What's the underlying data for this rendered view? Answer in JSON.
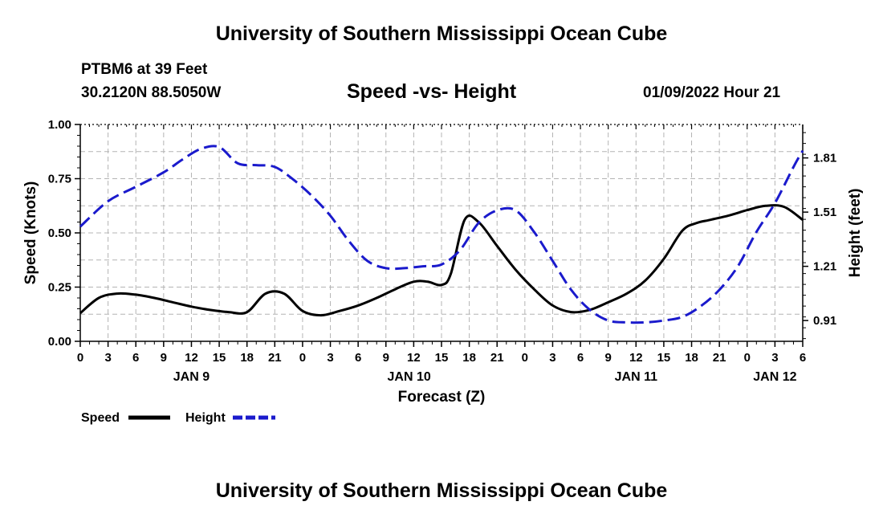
{
  "header": {
    "main_title": "University of Southern Mississippi Ocean Cube",
    "station": "PTBM6 at 39 Feet",
    "coords": "30.2120N  88.5050W",
    "run_date": "01/09/2022 Hour 21",
    "footer_title": "University of Southern Mississippi Ocean Cube"
  },
  "colors": {
    "speed": "#000000",
    "height": "#1a1acc",
    "grid": "#b4b4b4"
  },
  "chart_data": {
    "type": "line",
    "title": "Speed -vs- Height",
    "xlabel": "Forecast (Z)",
    "ylabel": "Speed (Knots)",
    "y2label": "Height (feet)",
    "xlim": [
      0,
      78
    ],
    "ylim": [
      0,
      1
    ],
    "y2lim": [
      0.795,
      1.995
    ],
    "x_ticks": [
      0,
      3,
      6,
      9,
      12,
      15,
      18,
      21,
      24,
      27,
      30,
      33,
      36,
      39,
      42,
      45,
      48,
      51,
      54,
      57,
      60,
      63,
      66,
      69,
      72,
      75,
      78
    ],
    "x_tick_labels": [
      "0",
      "3",
      "6",
      "9",
      "12",
      "15",
      "18",
      "21",
      "0",
      "3",
      "6",
      "9",
      "12",
      "15",
      "18",
      "21",
      "0",
      "3",
      "6",
      "9",
      "12",
      "15",
      "18",
      "21",
      "0",
      "3",
      "6"
    ],
    "day_labels": [
      {
        "x": 12,
        "label": "JAN 9"
      },
      {
        "x": 35.5,
        "label": "JAN 10"
      },
      {
        "x": 60,
        "label": "JAN 11"
      },
      {
        "x": 75,
        "label": "JAN 12"
      }
    ],
    "y_ticks": [
      0,
      0.25,
      0.5,
      0.75,
      1.0
    ],
    "y_tick_labels": [
      "0.00",
      "0.25",
      "0.50",
      "0.75",
      "1.00"
    ],
    "y2_ticks": [
      0.91,
      1.21,
      1.51,
      1.81
    ],
    "y2_tick_labels": [
      "0.91",
      "1.21",
      "1.51",
      "1.81"
    ],
    "grid": true,
    "legend": [
      {
        "name": "Speed",
        "style": "solid"
      },
      {
        "name": "Height",
        "style": "dashed"
      }
    ],
    "series": [
      {
        "name": "Speed",
        "axis": "left",
        "x": [
          0,
          2,
          4,
          6,
          8,
          10,
          12,
          14,
          16,
          18,
          20,
          22,
          24,
          26,
          28,
          30,
          32,
          34,
          36,
          37.5,
          39,
          40,
          41.5,
          43,
          45,
          47,
          49,
          51,
          53,
          55,
          57,
          59,
          61,
          63,
          65,
          66.5,
          68,
          70,
          72,
          74,
          76,
          78
        ],
        "y": [
          0.13,
          0.2,
          0.22,
          0.215,
          0.2,
          0.18,
          0.16,
          0.145,
          0.135,
          0.135,
          0.22,
          0.22,
          0.14,
          0.12,
          0.14,
          0.165,
          0.2,
          0.24,
          0.275,
          0.275,
          0.26,
          0.31,
          0.56,
          0.55,
          0.44,
          0.33,
          0.24,
          0.165,
          0.135,
          0.145,
          0.18,
          0.22,
          0.28,
          0.38,
          0.51,
          0.545,
          0.56,
          0.58,
          0.605,
          0.625,
          0.62,
          0.56
        ]
      },
      {
        "name": "Height",
        "axis": "right",
        "x": [
          0,
          3,
          6,
          9,
          11,
          13,
          15,
          17,
          19,
          21,
          23,
          25,
          27,
          29,
          31,
          33,
          35,
          37,
          39,
          41,
          43,
          45,
          47,
          49,
          51,
          53,
          55,
          57,
          59,
          61,
          63,
          65,
          67,
          69,
          71,
          73,
          75,
          77,
          78
        ],
        "y": [
          1.43,
          1.57,
          1.65,
          1.73,
          1.8,
          1.86,
          1.87,
          1.78,
          1.77,
          1.76,
          1.69,
          1.6,
          1.49,
          1.35,
          1.24,
          1.2,
          1.2,
          1.21,
          1.22,
          1.3,
          1.45,
          1.52,
          1.52,
          1.4,
          1.24,
          1.08,
          0.97,
          0.91,
          0.9,
          0.9,
          0.91,
          0.93,
          0.99,
          1.08,
          1.21,
          1.4,
          1.56,
          1.76,
          1.85
        ]
      }
    ]
  }
}
